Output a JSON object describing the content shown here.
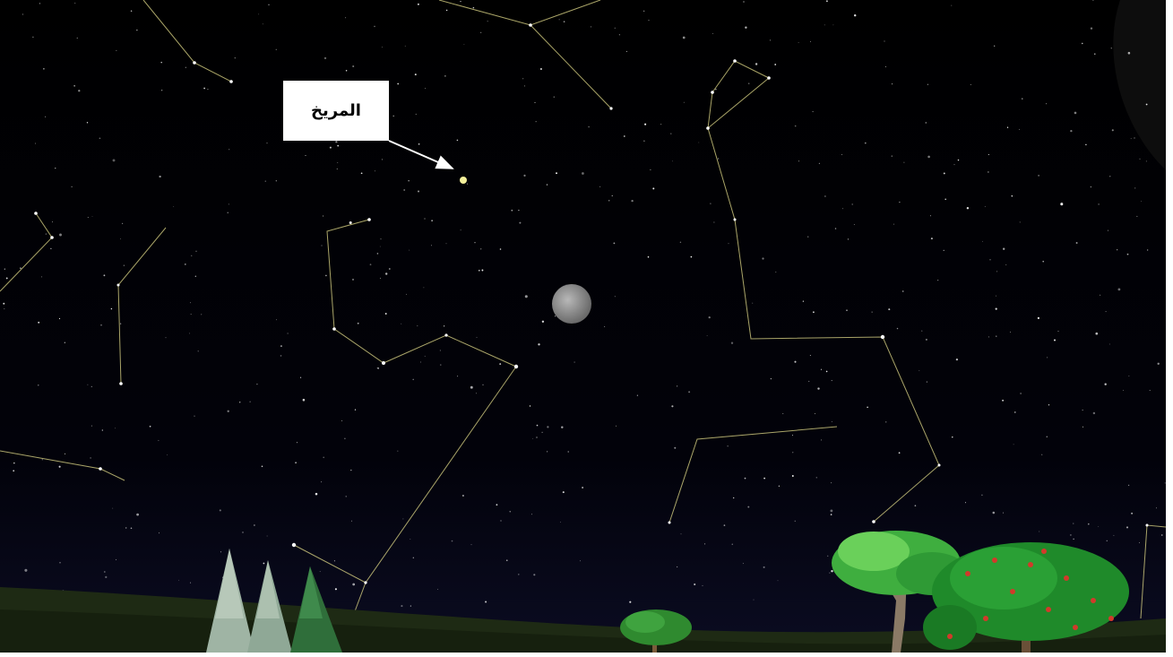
{
  "label": {
    "text": "المريخ"
  }
}
